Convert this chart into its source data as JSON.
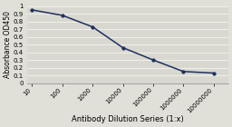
{
  "x_values": [
    10,
    100,
    1000,
    10000,
    100000,
    1000000,
    10000000
  ],
  "y_values": [
    0.95,
    0.88,
    0.73,
    0.46,
    0.3,
    0.15,
    0.13
  ],
  "x_labels": [
    "10",
    "100",
    "1000",
    "10000",
    "100000",
    "1000000",
    "10000000"
  ],
  "xlabel": "Antibody Dilution Series (1:x)",
  "ylabel": "Absorbance OD450",
  "ylim": [
    0,
    1.0
  ],
  "yticks": [
    0,
    0.1,
    0.2,
    0.3,
    0.4,
    0.5,
    0.6,
    0.7,
    0.8,
    0.9,
    1
  ],
  "ytick_labels": [
    "0",
    "0.1",
    "0.2",
    "0.3",
    "0.4",
    "0.5",
    "0.6",
    "0.7",
    "0.8",
    "0.9",
    "1"
  ],
  "line_color": "#1e2f5e",
  "marker_color": "#1e2f5e",
  "bg_color": "#e0e0d8",
  "plot_bg_color": "#d8d8d0",
  "grid_color": "#f0f0ec",
  "xlabel_fontsize": 6.0,
  "ylabel_fontsize": 5.5,
  "tick_fontsize": 5.0,
  "linewidth": 1.1,
  "markersize": 2.5
}
